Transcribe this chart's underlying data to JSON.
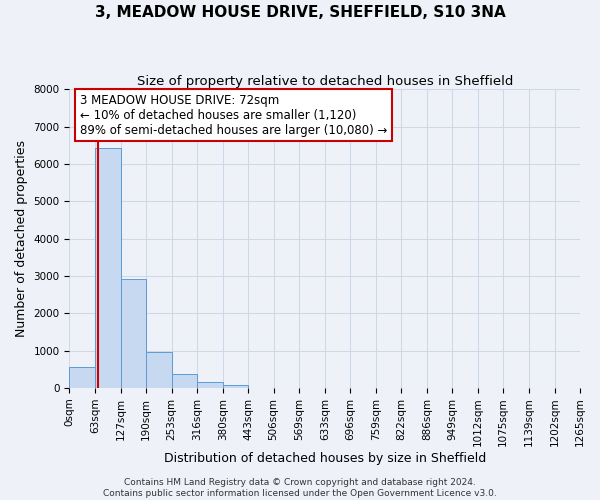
{
  "title": "3, MEADOW HOUSE DRIVE, SHEFFIELD, S10 3NA",
  "subtitle": "Size of property relative to detached houses in Sheffield",
  "xlabel": "Distribution of detached houses by size in Sheffield",
  "ylabel": "Number of detached properties",
  "bin_edges": [
    0,
    63,
    127,
    190,
    253,
    316,
    380,
    443,
    506,
    569,
    633,
    696,
    759,
    822,
    886,
    949,
    1012,
    1075,
    1139,
    1202,
    1265
  ],
  "bin_labels": [
    "0sqm",
    "63sqm",
    "127sqm",
    "190sqm",
    "253sqm",
    "316sqm",
    "380sqm",
    "443sqm",
    "506sqm",
    "569sqm",
    "633sqm",
    "696sqm",
    "759sqm",
    "822sqm",
    "886sqm",
    "949sqm",
    "1012sqm",
    "1075sqm",
    "1139sqm",
    "1202sqm",
    "1265sqm"
  ],
  "bar_heights": [
    550,
    6430,
    2920,
    970,
    370,
    160,
    70,
    0,
    0,
    0,
    0,
    0,
    0,
    0,
    0,
    0,
    0,
    0,
    0,
    0
  ],
  "bar_color": "#c6d9f0",
  "bar_edgecolor": "#5b9bd5",
  "property_size": 72,
  "red_line_x": 72,
  "annotation_title": "3 MEADOW HOUSE DRIVE: 72sqm",
  "annotation_line1": "← 10% of detached houses are smaller (1,120)",
  "annotation_line2": "89% of semi-detached houses are larger (10,080) →",
  "annotation_box_color": "#ffffff",
  "annotation_box_edgecolor": "#cc0000",
  "ylim": [
    0,
    8000
  ],
  "yticks": [
    0,
    1000,
    2000,
    3000,
    4000,
    5000,
    6000,
    7000,
    8000
  ],
  "grid_color": "#d0d8e8",
  "background_color": "#eef2f8",
  "footer_line1": "Contains HM Land Registry data © Crown copyright and database right 2024.",
  "footer_line2": "Contains public sector information licensed under the Open Government Licence v3.0.",
  "title_fontsize": 11,
  "subtitle_fontsize": 9.5,
  "axis_label_fontsize": 9,
  "tick_fontsize": 7.5,
  "annotation_fontsize": 8.5,
  "footer_fontsize": 6.5
}
